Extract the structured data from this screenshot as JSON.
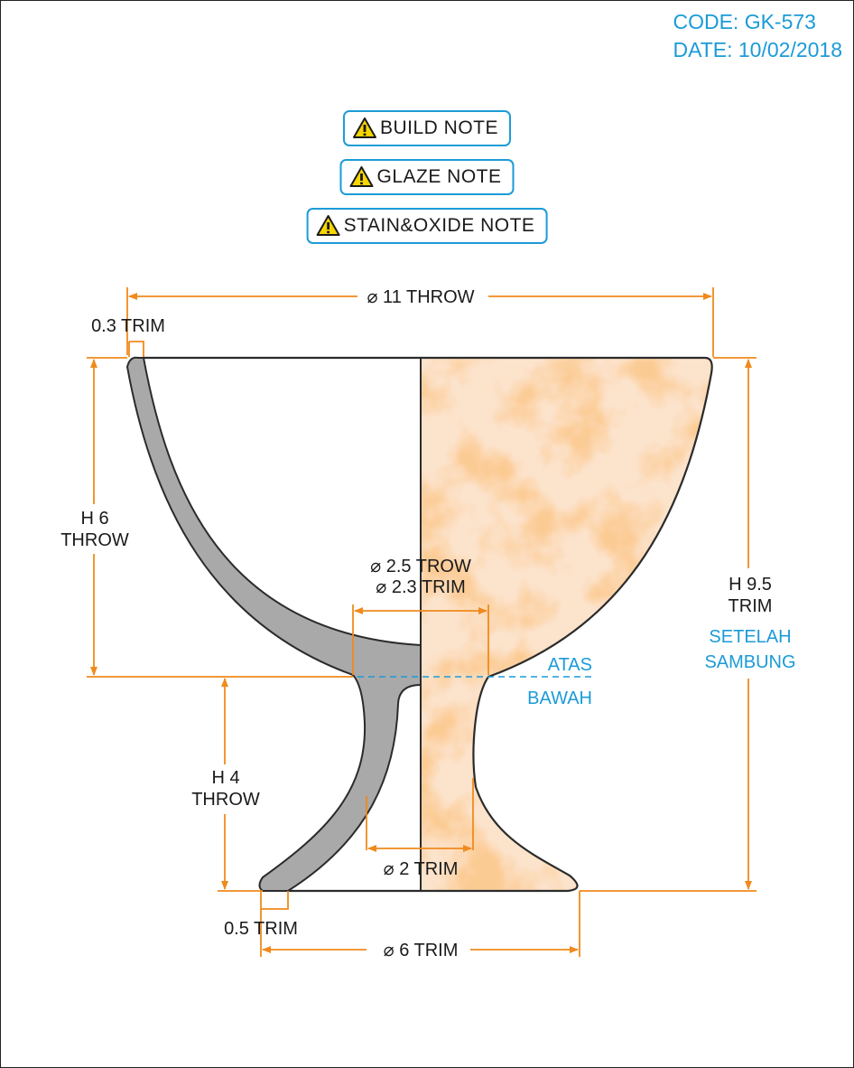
{
  "header": {
    "code": "CODE: GK-573",
    "date": "DATE: 10/02/2018"
  },
  "notes": [
    {
      "label": "BUILD NOTE",
      "icon": "warning-icon"
    },
    {
      "label": "GLAZE NOTE",
      "icon": "warning-icon"
    },
    {
      "label": "STAIN&OXIDE NOTE",
      "icon": "warning-icon"
    }
  ],
  "dimensions": {
    "top_width": "⌀ 11 THROW",
    "rim_trim": "0.3 TRIM",
    "bowl_height_1": "H 6",
    "bowl_height_2": "THROW",
    "neck_throw": "⌀ 2.5 TROW",
    "neck_trim": "⌀ 2.3 TRIM",
    "stem_height_1": "H 4",
    "stem_height_2": "THROW",
    "stem_width": "⌀ 2 TRIM",
    "foot_trim": "0.5 TRIM",
    "base_width": "⌀ 6 TRIM",
    "total_height_1": "H 9.5",
    "total_height_2": "TRIM"
  },
  "join_labels": {
    "above": "ATAS",
    "below": "BAWAH",
    "after_1": "SETELAH",
    "after_2": "SAMBUNG"
  },
  "colors": {
    "dimension": "#f08a1c",
    "annotation": "#1b9bd7",
    "section_fill": "#a9a9a9",
    "glaze_base": "#fce3cc",
    "glaze_mottle": "#f7a766",
    "outline": "#2b2b2b"
  }
}
